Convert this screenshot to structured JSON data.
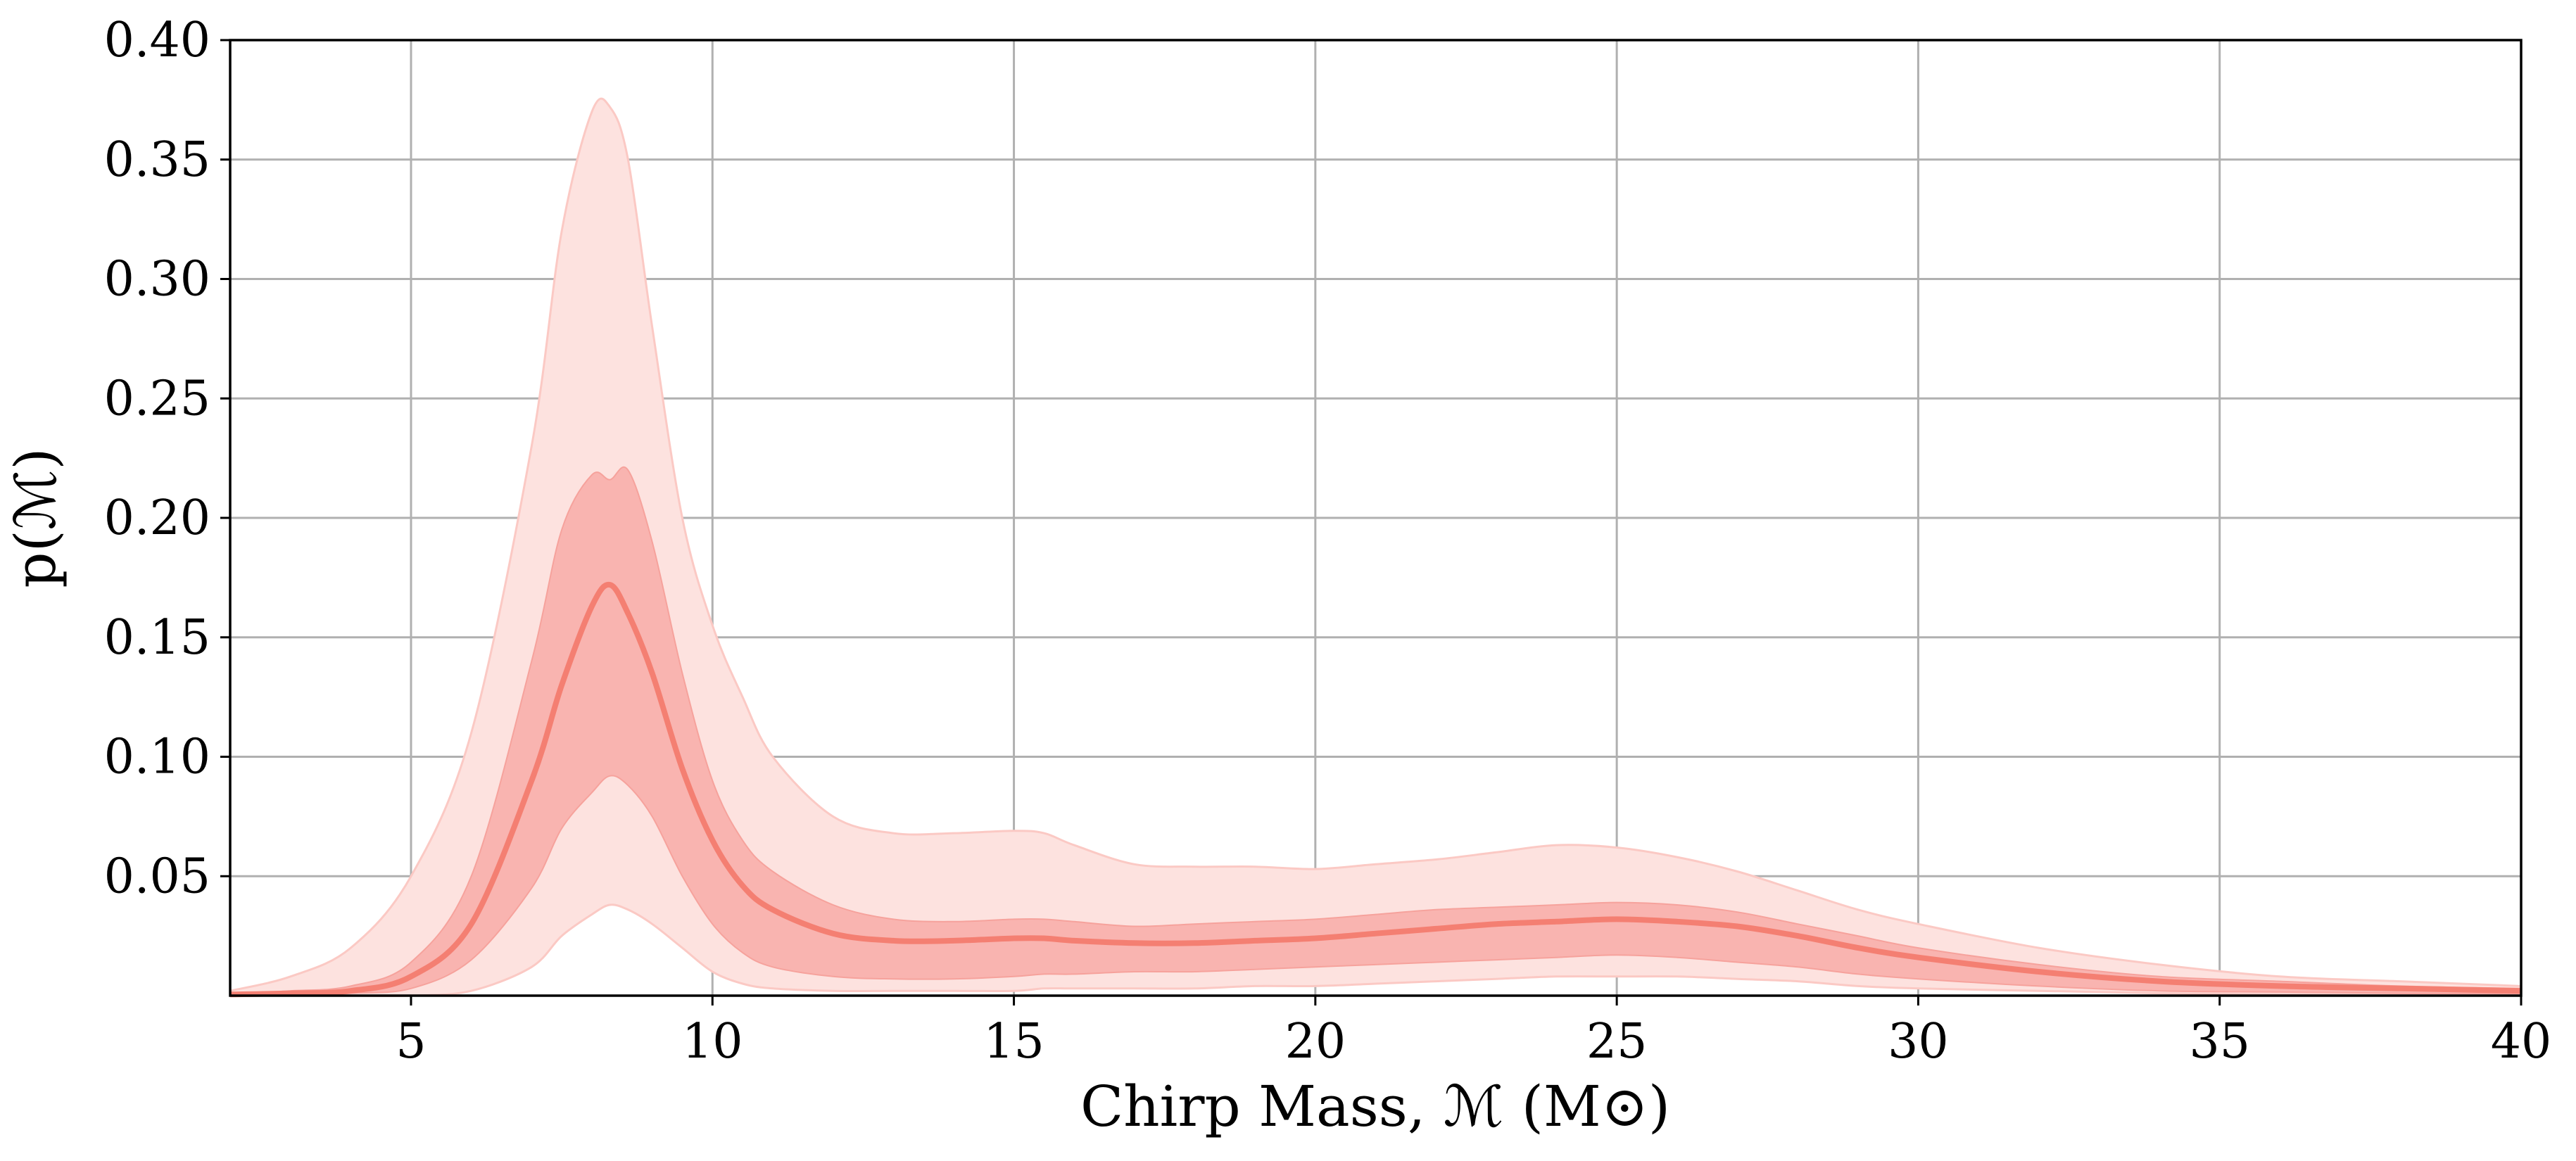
{
  "chart_data": {
    "type": "area",
    "xlabel": "Chirp Mass, ℳ (M⊙)",
    "ylabel": "p(ℳ)",
    "xlim": [
      2,
      40
    ],
    "ylim": [
      0,
      0.4
    ],
    "xticks": [
      5,
      10,
      15,
      20,
      25,
      30,
      35,
      40
    ],
    "yticks": [
      0.05,
      0.1,
      0.15,
      0.2,
      0.25,
      0.3,
      0.35,
      0.4
    ],
    "xtick_labels": [
      "5",
      "10",
      "15",
      "20",
      "25",
      "30",
      "35",
      "40"
    ],
    "ytick_labels": [
      "0.05",
      "0.10",
      "0.15",
      "0.20",
      "0.25",
      "0.30",
      "0.35",
      "0.40"
    ],
    "grid": true,
    "colors": {
      "median_line": "#f47f72",
      "inner_band": "#f9b4b0",
      "outer_band": "#fde2df"
    },
    "x": [
      2,
      3,
      4,
      5,
      6,
      7,
      7.5,
      8,
      8.3,
      8.6,
      9,
      9.5,
      10,
      10.5,
      11,
      12,
      13,
      14,
      15,
      15.5,
      16,
      17,
      18,
      19,
      20,
      21,
      22,
      23,
      24,
      25,
      26,
      27,
      28,
      29,
      30,
      32,
      34,
      36,
      38,
      40
    ],
    "median": [
      0.0005,
      0.001,
      0.002,
      0.008,
      0.03,
      0.09,
      0.13,
      0.163,
      0.172,
      0.16,
      0.135,
      0.095,
      0.065,
      0.046,
      0.036,
      0.026,
      0.023,
      0.023,
      0.024,
      0.024,
      0.023,
      0.022,
      0.022,
      0.023,
      0.024,
      0.026,
      0.028,
      0.03,
      0.031,
      0.032,
      0.031,
      0.029,
      0.025,
      0.02,
      0.016,
      0.01,
      0.006,
      0.004,
      0.003,
      0.002
    ],
    "inner_lower": [
      0.0,
      0.0003,
      0.001,
      0.003,
      0.015,
      0.045,
      0.07,
      0.085,
      0.092,
      0.088,
      0.075,
      0.05,
      0.03,
      0.018,
      0.012,
      0.008,
      0.007,
      0.007,
      0.008,
      0.009,
      0.009,
      0.01,
      0.01,
      0.011,
      0.012,
      0.013,
      0.014,
      0.015,
      0.016,
      0.017,
      0.016,
      0.014,
      0.012,
      0.009,
      0.007,
      0.004,
      0.002,
      0.0015,
      0.001,
      0.0008
    ],
    "inner_upper": [
      0.001,
      0.002,
      0.004,
      0.014,
      0.05,
      0.14,
      0.195,
      0.218,
      0.216,
      0.22,
      0.19,
      0.135,
      0.09,
      0.065,
      0.052,
      0.038,
      0.032,
      0.031,
      0.032,
      0.032,
      0.031,
      0.029,
      0.03,
      0.031,
      0.032,
      0.034,
      0.036,
      0.037,
      0.038,
      0.039,
      0.038,
      0.035,
      0.03,
      0.025,
      0.02,
      0.013,
      0.008,
      0.006,
      0.004,
      0.003
    ],
    "outer_lower": [
      0.0,
      0.0,
      0.0,
      0.0,
      0.002,
      0.012,
      0.025,
      0.034,
      0.038,
      0.036,
      0.03,
      0.02,
      0.01,
      0.005,
      0.003,
      0.002,
      0.002,
      0.002,
      0.002,
      0.003,
      0.003,
      0.003,
      0.003,
      0.004,
      0.004,
      0.005,
      0.006,
      0.007,
      0.008,
      0.008,
      0.008,
      0.007,
      0.006,
      0.004,
      0.003,
      0.002,
      0.001,
      0.0005,
      0.0003,
      0.0002
    ],
    "outer_upper": [
      0.002,
      0.008,
      0.02,
      0.05,
      0.11,
      0.23,
      0.32,
      0.37,
      0.372,
      0.35,
      0.28,
      0.2,
      0.155,
      0.125,
      0.1,
      0.075,
      0.068,
      0.068,
      0.069,
      0.068,
      0.063,
      0.055,
      0.054,
      0.054,
      0.053,
      0.055,
      0.057,
      0.06,
      0.063,
      0.062,
      0.058,
      0.052,
      0.044,
      0.036,
      0.03,
      0.02,
      0.013,
      0.008,
      0.006,
      0.004
    ]
  }
}
